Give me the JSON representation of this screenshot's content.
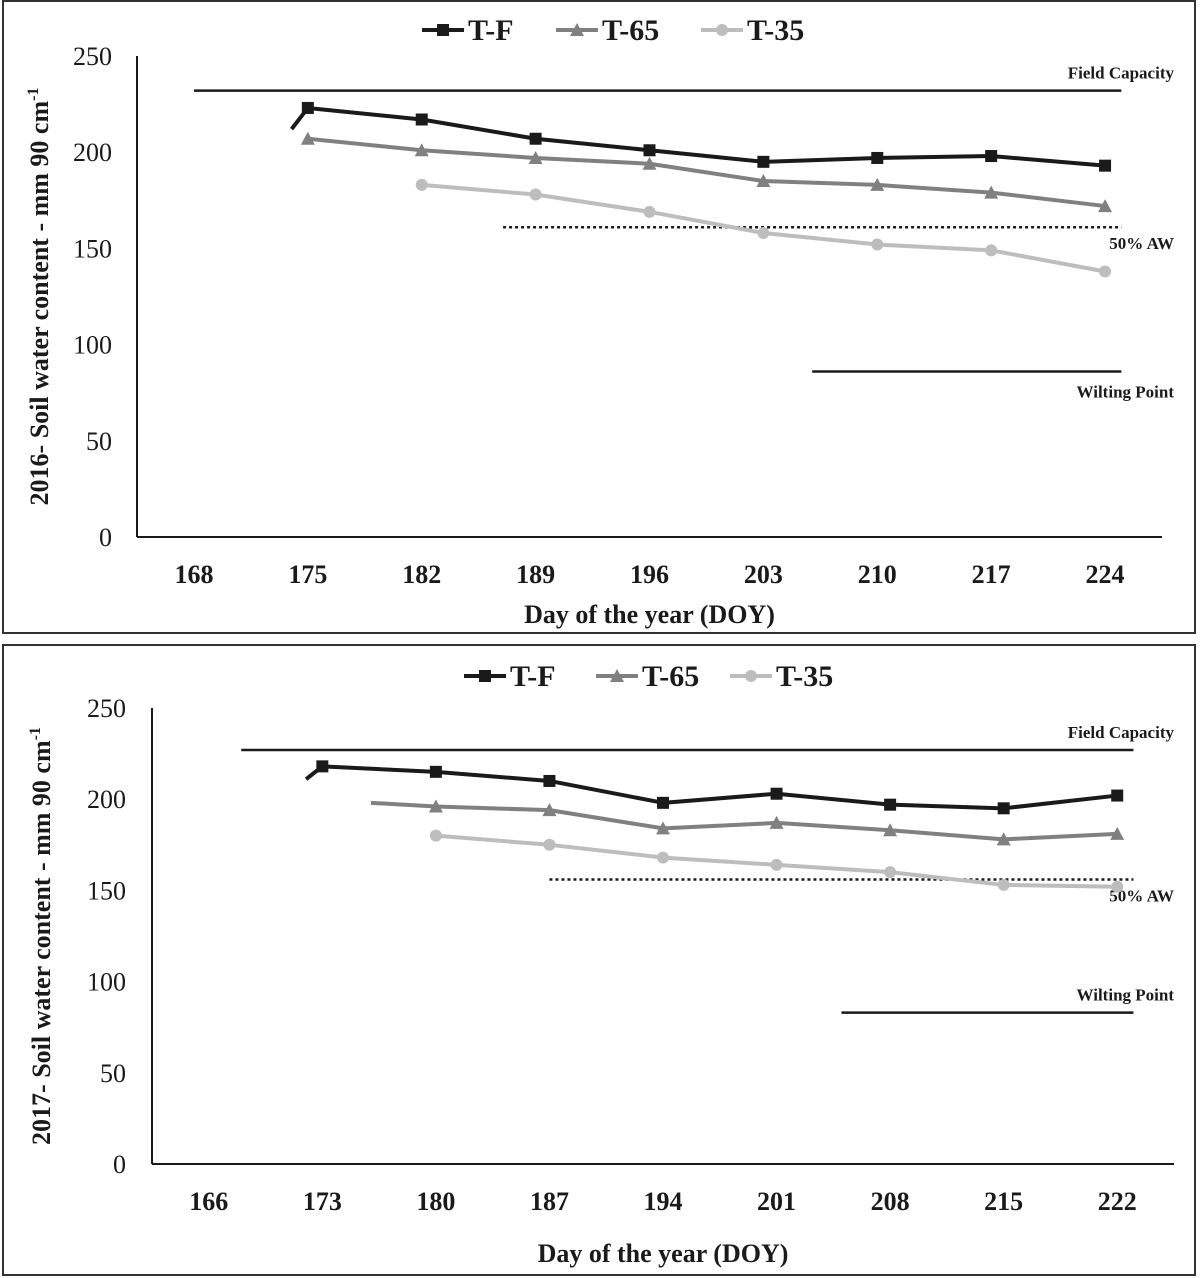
{
  "chart_data": [
    {
      "type": "line",
      "ylabel": "2016- Soil water content - mm 90 cm",
      "ylabel_sup": "-1",
      "xlabel": "Day of the year (DOY)",
      "categories": [
        "168",
        "175",
        "182",
        "189",
        "196",
        "203",
        "210",
        "217",
        "224"
      ],
      "x": [
        168,
        175,
        182,
        189,
        196,
        203,
        210,
        217,
        224
      ],
      "xlim": [
        164.5,
        227.5
      ],
      "ylim": [
        0,
        250
      ],
      "yticks": [
        "0",
        "50",
        "100",
        "150",
        "200",
        "250"
      ],
      "legend_position": "top-center",
      "series": [
        {
          "name": "T-F",
          "color": "#1a1a1a",
          "marker": "square",
          "lead_in": [
            174,
            212
          ],
          "points": [
            [
              175,
              223
            ],
            [
              182,
              217
            ],
            [
              189,
              207
            ],
            [
              196,
              201
            ],
            [
              203,
              195
            ],
            [
              210,
              197
            ],
            [
              217,
              198
            ],
            [
              224,
              193
            ]
          ]
        },
        {
          "name": "T-65",
          "color": "#808080",
          "marker": "triangle",
          "lead_in": [
            175,
            208
          ],
          "points": [
            [
              175,
              207
            ],
            [
              182,
              201
            ],
            [
              189,
              197
            ],
            [
              196,
              194
            ],
            [
              203,
              185
            ],
            [
              210,
              183
            ],
            [
              217,
              179
            ],
            [
              224,
              172
            ]
          ]
        },
        {
          "name": "T-35",
          "color": "#bdbdbd",
          "marker": "circle",
          "lead_in": [
            182,
            182
          ],
          "points": [
            [
              182,
              183
            ],
            [
              189,
              178
            ],
            [
              196,
              169
            ],
            [
              203,
              158
            ],
            [
              210,
              152
            ],
            [
              217,
              149
            ],
            [
              224,
              138
            ]
          ]
        }
      ],
      "reference_lines": [
        {
          "name": "field-capacity",
          "label": "Field Capacity",
          "y": 232,
          "x_start": 168,
          "x_end": 225,
          "style": "solid"
        },
        {
          "name": "half-aw",
          "label": "50% AW",
          "y": 161,
          "x_start": 187,
          "x_end": 225,
          "style": "dotted"
        },
        {
          "name": "wilting-point",
          "label": "Wilting Point",
          "y": 86,
          "x_start": 206,
          "x_end": 225,
          "style": "solid"
        }
      ]
    },
    {
      "type": "line",
      "ylabel": "2017- Soil water content - mm 90 cm",
      "ylabel_sup": "-1",
      "xlabel": "Day of the year (DOY)",
      "categories": [
        "166",
        "173",
        "180",
        "187",
        "194",
        "201",
        "208",
        "215",
        "222"
      ],
      "x": [
        166,
        173,
        180,
        187,
        194,
        201,
        208,
        215,
        222
      ],
      "xlim": [
        162.5,
        225.5
      ],
      "ylim": [
        0,
        250
      ],
      "yticks": [
        "0",
        "50",
        "100",
        "150",
        "200",
        "250"
      ],
      "legend_position": "top-center",
      "series": [
        {
          "name": "T-F",
          "color": "#1a1a1a",
          "marker": "square",
          "lead_in": [
            172,
            211
          ],
          "points": [
            [
              173,
              218
            ],
            [
              180,
              215
            ],
            [
              187,
              210
            ],
            [
              194,
              198
            ],
            [
              201,
              203
            ],
            [
              208,
              197
            ],
            [
              215,
              195
            ],
            [
              222,
              202
            ]
          ]
        },
        {
          "name": "T-65",
          "color": "#808080",
          "marker": "triangle",
          "lead_in": [
            176,
            198
          ],
          "points": [
            [
              180,
              196
            ],
            [
              187,
              194
            ],
            [
              194,
              184
            ],
            [
              201,
              187
            ],
            [
              208,
              183
            ],
            [
              215,
              178
            ],
            [
              222,
              181
            ]
          ]
        },
        {
          "name": "T-35",
          "color": "#bdbdbd",
          "marker": "circle",
          "lead_in": [
            180,
            181
          ],
          "points": [
            [
              180,
              180
            ],
            [
              187,
              175
            ],
            [
              194,
              168
            ],
            [
              201,
              164
            ],
            [
              208,
              160
            ],
            [
              215,
              153
            ],
            [
              222,
              152
            ]
          ]
        }
      ],
      "reference_lines": [
        {
          "name": "field-capacity",
          "label": "Field Capacity",
          "y": 227,
          "x_start": 168,
          "x_end": 223,
          "style": "solid"
        },
        {
          "name": "half-aw",
          "label": "50% AW",
          "y": 156,
          "x_start": 187,
          "x_end": 223,
          "style": "dotted"
        },
        {
          "name": "wilting-point",
          "label": "Wilting Point",
          "y": 83,
          "x_start": 205,
          "x_end": 223,
          "style": "solid"
        }
      ]
    }
  ]
}
